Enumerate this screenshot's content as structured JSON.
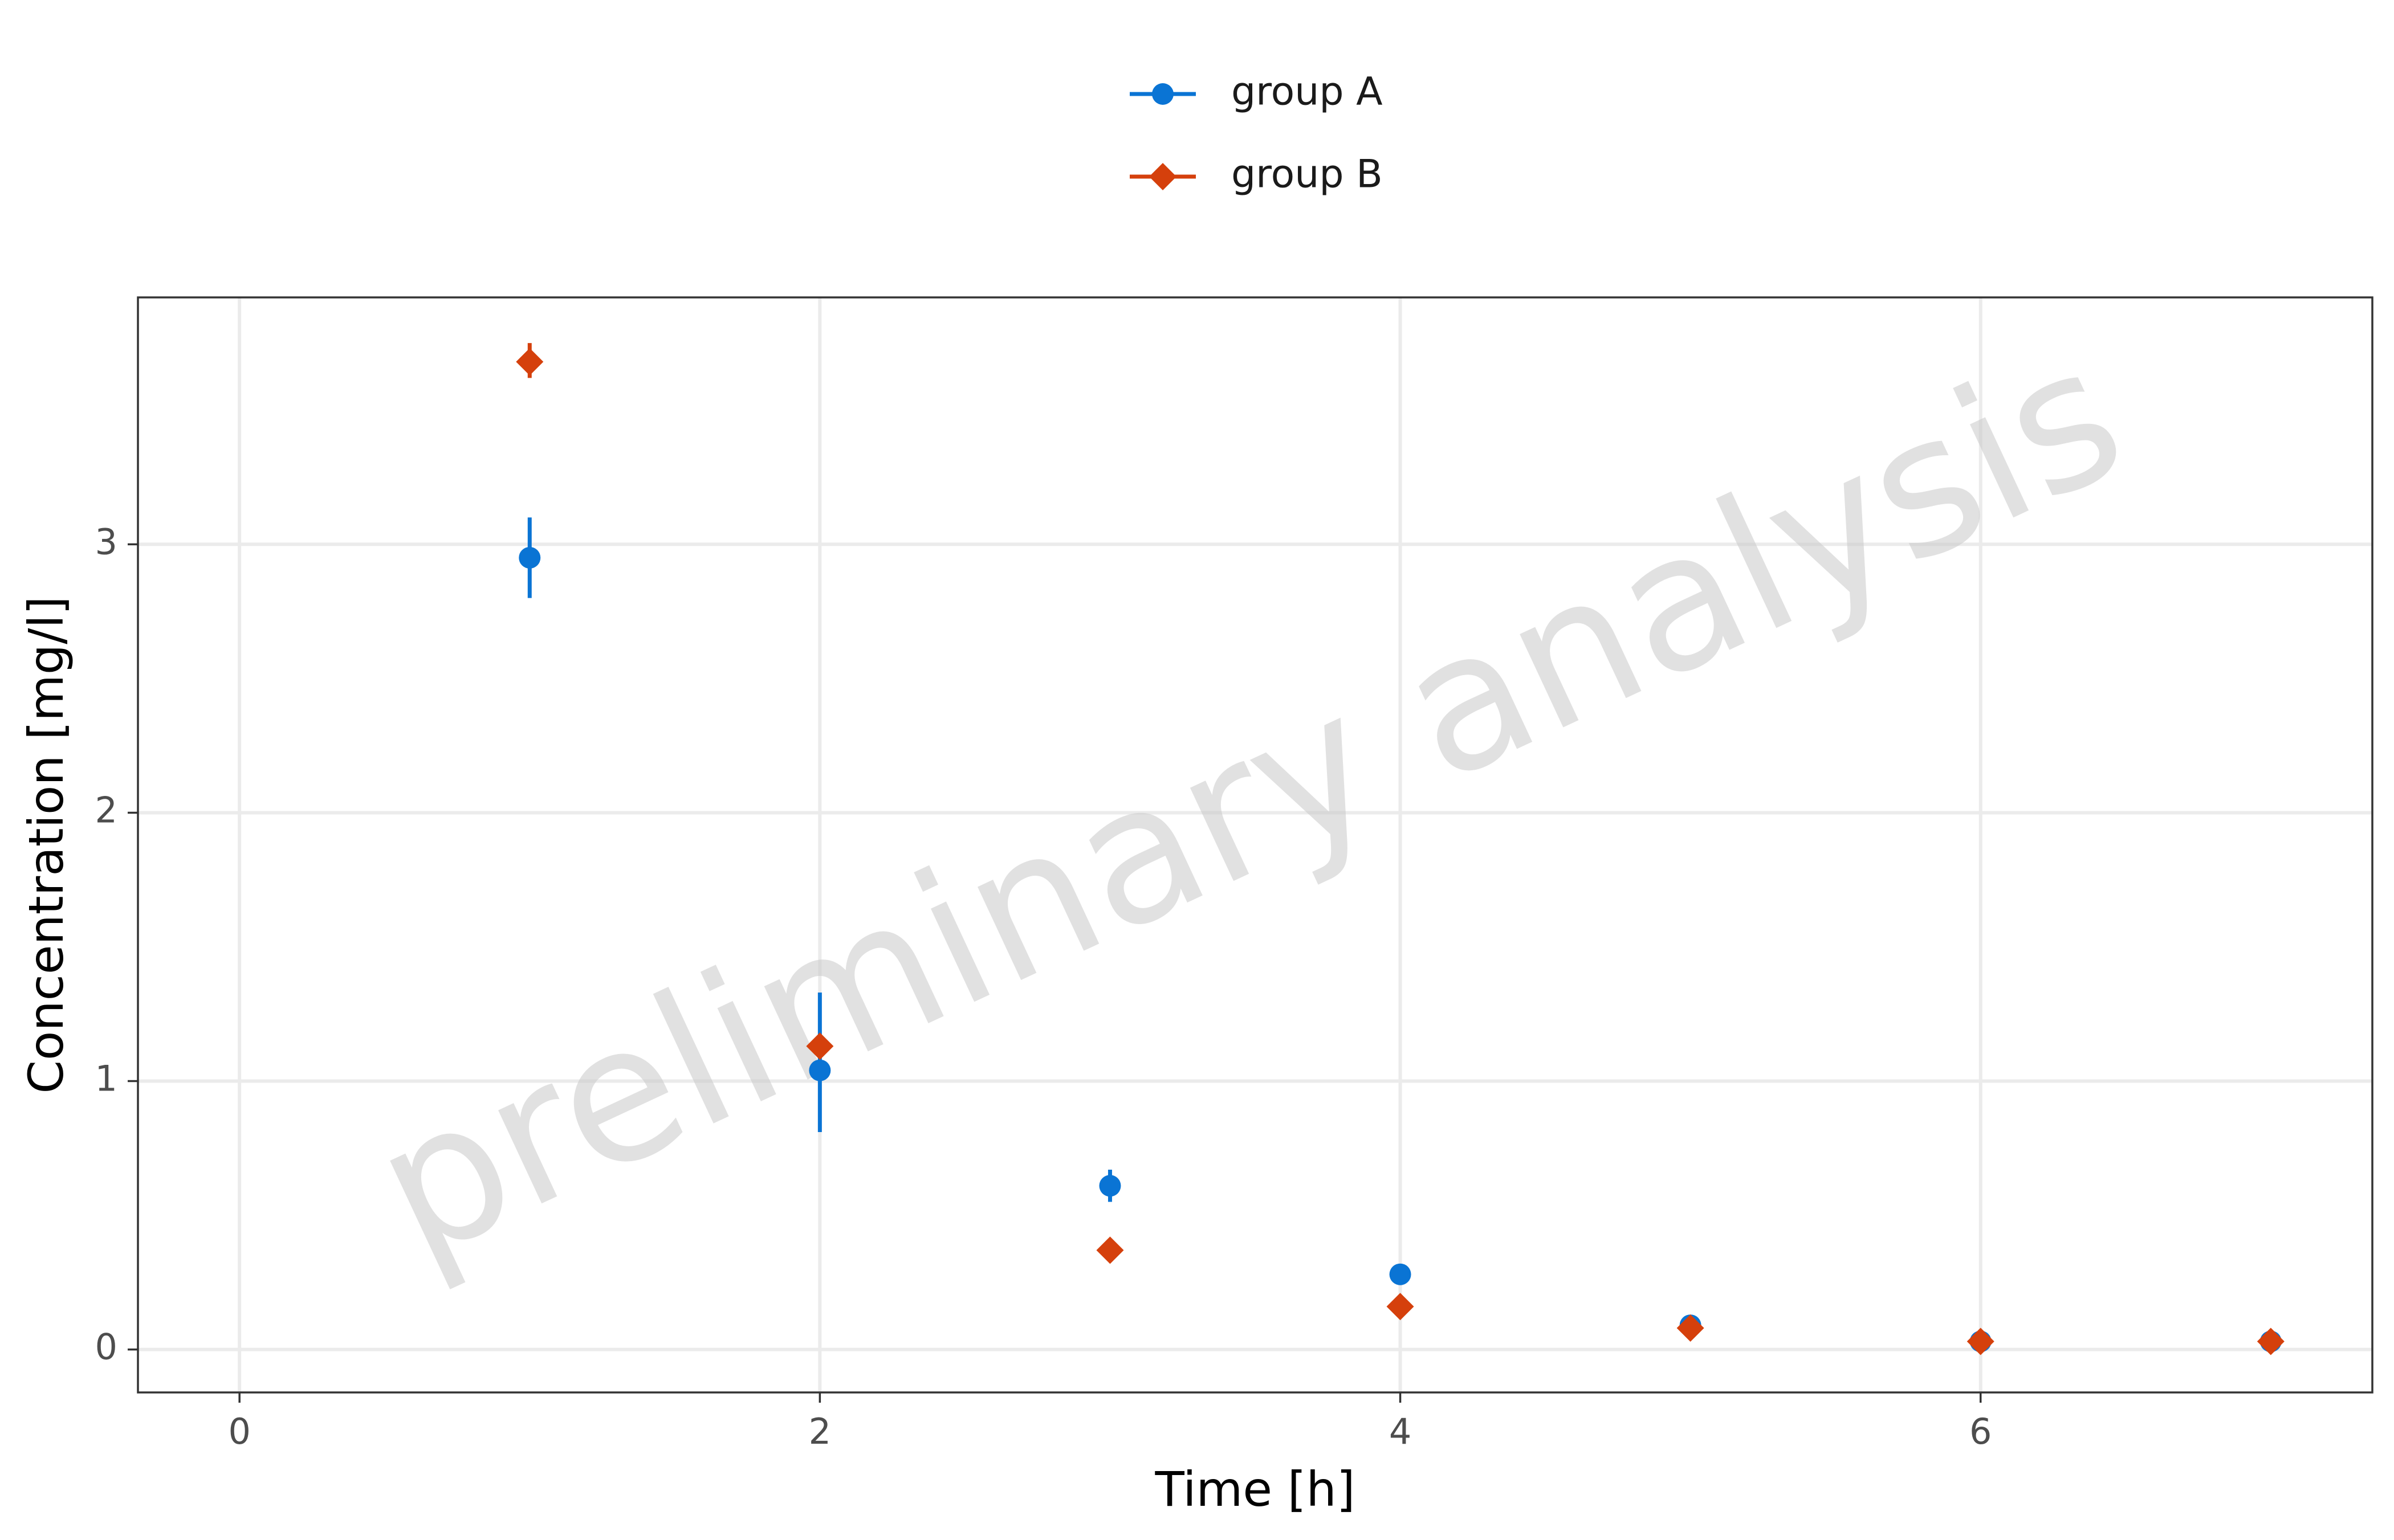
{
  "chart_data": {
    "type": "scatter",
    "title": "",
    "xlabel": "Time [h]",
    "ylabel": "Concentration [mg/l]",
    "xlim": [
      -0.35,
      7.35
    ],
    "ylim": [
      -0.16,
      3.92
    ],
    "xticks": [
      0,
      2,
      4,
      6
    ],
    "yticks": [
      0,
      1,
      2,
      3
    ],
    "grid": true,
    "legend_position": "top",
    "watermark": "preliminary analysis",
    "series": [
      {
        "name": "group A",
        "color": "#0A74D4",
        "marker": "circle",
        "points": [
          {
            "x": 1,
            "y": 2.95,
            "lo": 2.8,
            "hi": 3.1
          },
          {
            "x": 2,
            "y": 1.04,
            "lo": 0.81,
            "hi": 1.33
          },
          {
            "x": 3,
            "y": 0.61,
            "lo": 0.55,
            "hi": 0.67
          },
          {
            "x": 4,
            "y": 0.28,
            "lo": 0.26,
            "hi": 0.3
          },
          {
            "x": 5,
            "y": 0.09,
            "lo": 0.08,
            "hi": 0.1
          },
          {
            "x": 6,
            "y": 0.03,
            "lo": 0.02,
            "hi": 0.04
          },
          {
            "x": 7,
            "y": 0.03,
            "lo": 0.02,
            "hi": 0.04
          }
        ]
      },
      {
        "name": "group B",
        "color": "#D5400C",
        "marker": "diamond",
        "points": [
          {
            "x": 1,
            "y": 3.68,
            "lo": 3.62,
            "hi": 3.75
          },
          {
            "x": 2,
            "y": 1.13,
            "lo": 1.1,
            "hi": 1.16
          },
          {
            "x": 3,
            "y": 0.37,
            "lo": 0.36,
            "hi": 0.38
          },
          {
            "x": 4,
            "y": 0.16,
            "lo": 0.15,
            "hi": 0.17
          },
          {
            "x": 5,
            "y": 0.08,
            "lo": 0.07,
            "hi": 0.09
          },
          {
            "x": 6,
            "y": 0.03,
            "lo": 0.02,
            "hi": 0.04
          },
          {
            "x": 7,
            "y": 0.03,
            "lo": 0.02,
            "hi": 0.04
          }
        ]
      }
    ]
  }
}
